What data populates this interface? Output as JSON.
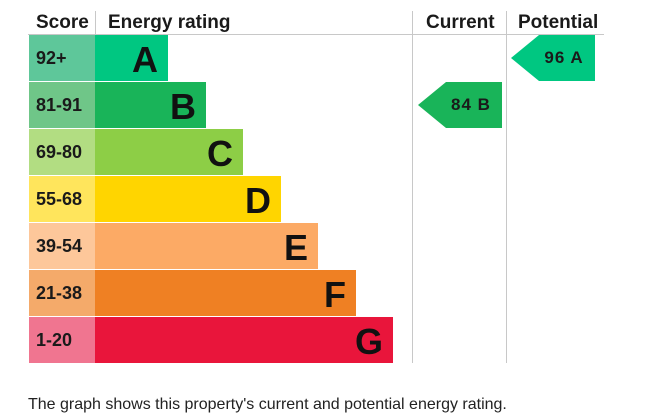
{
  "chart_data": {
    "type": "table",
    "headers": {
      "score": "Score",
      "rating": "Energy rating",
      "current": "Current",
      "potential": "Potential"
    },
    "bands": [
      {
        "range": "92+",
        "letter": "A",
        "color": "#00c781",
        "score_color": "#5ec79a"
      },
      {
        "range": "81-91",
        "letter": "B",
        "color": "#19b459",
        "score_color": "#6fc688"
      },
      {
        "range": "69-80",
        "letter": "C",
        "color": "#8dce46",
        "score_color": "#b2dd82"
      },
      {
        "range": "55-68",
        "letter": "D",
        "color": "#ffd500",
        "score_color": "#ffe55c"
      },
      {
        "range": "39-54",
        "letter": "E",
        "color": "#fcaa65",
        "score_color": "#fdc79a"
      },
      {
        "range": "21-38",
        "letter": "F",
        "color": "#ef8023",
        "score_color": "#f4aa6a"
      },
      {
        "range": "1-20",
        "letter": "G",
        "color": "#e9153b",
        "score_color": "#f07590"
      }
    ],
    "current": {
      "value": 84,
      "letter": "B",
      "label": "84 B",
      "color": "#19b459"
    },
    "potential": {
      "value": 96,
      "letter": "A",
      "label": "96 A",
      "color": "#00c781"
    }
  },
  "caption": "The graph shows this property's current and potential energy rating."
}
